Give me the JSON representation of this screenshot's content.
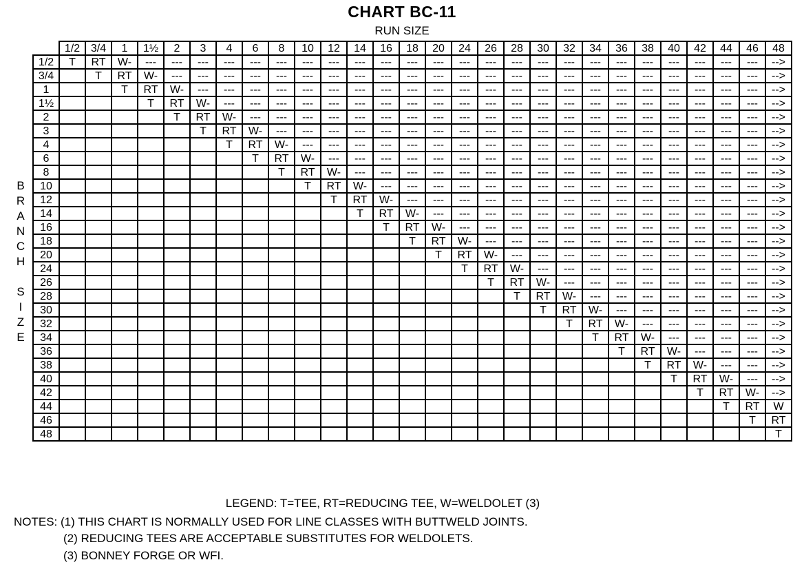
{
  "title": "CHART BC-11",
  "subtitle": "RUN SIZE",
  "branch_label": [
    "B",
    "R",
    "A",
    "N",
    "C",
    "H",
    "",
    "S",
    "I",
    "Z",
    "E"
  ],
  "sizes": [
    "1/2",
    "3/4",
    "1",
    "1½",
    "2",
    "3",
    "4",
    "6",
    "8",
    "10",
    "12",
    "14",
    "16",
    "18",
    "20",
    "24",
    "26",
    "28",
    "30",
    "32",
    "34",
    "36",
    "38",
    "40",
    "42",
    "44",
    "46",
    "48"
  ],
  "codes": {
    "diag": "T",
    "next": "RT",
    "third": "W-",
    "rest": "---",
    "last": "-->"
  },
  "overrides": {
    "25": {
      "27": "W"
    }
  },
  "legend": "LEGEND:  T=TEE, RT=REDUCING TEE, W=WELDOLET (3)",
  "notes": [
    "NOTES: (1) THIS CHART IS NORMALLY USED FOR LINE CLASSES WITH BUTTWELD JOINTS.",
    "(2) REDUCING TEES ARE ACCEPTABLE SUBSTITUTES FOR WELDOLETS.",
    "(3) BONNEY FORGE OR WFI."
  ]
}
